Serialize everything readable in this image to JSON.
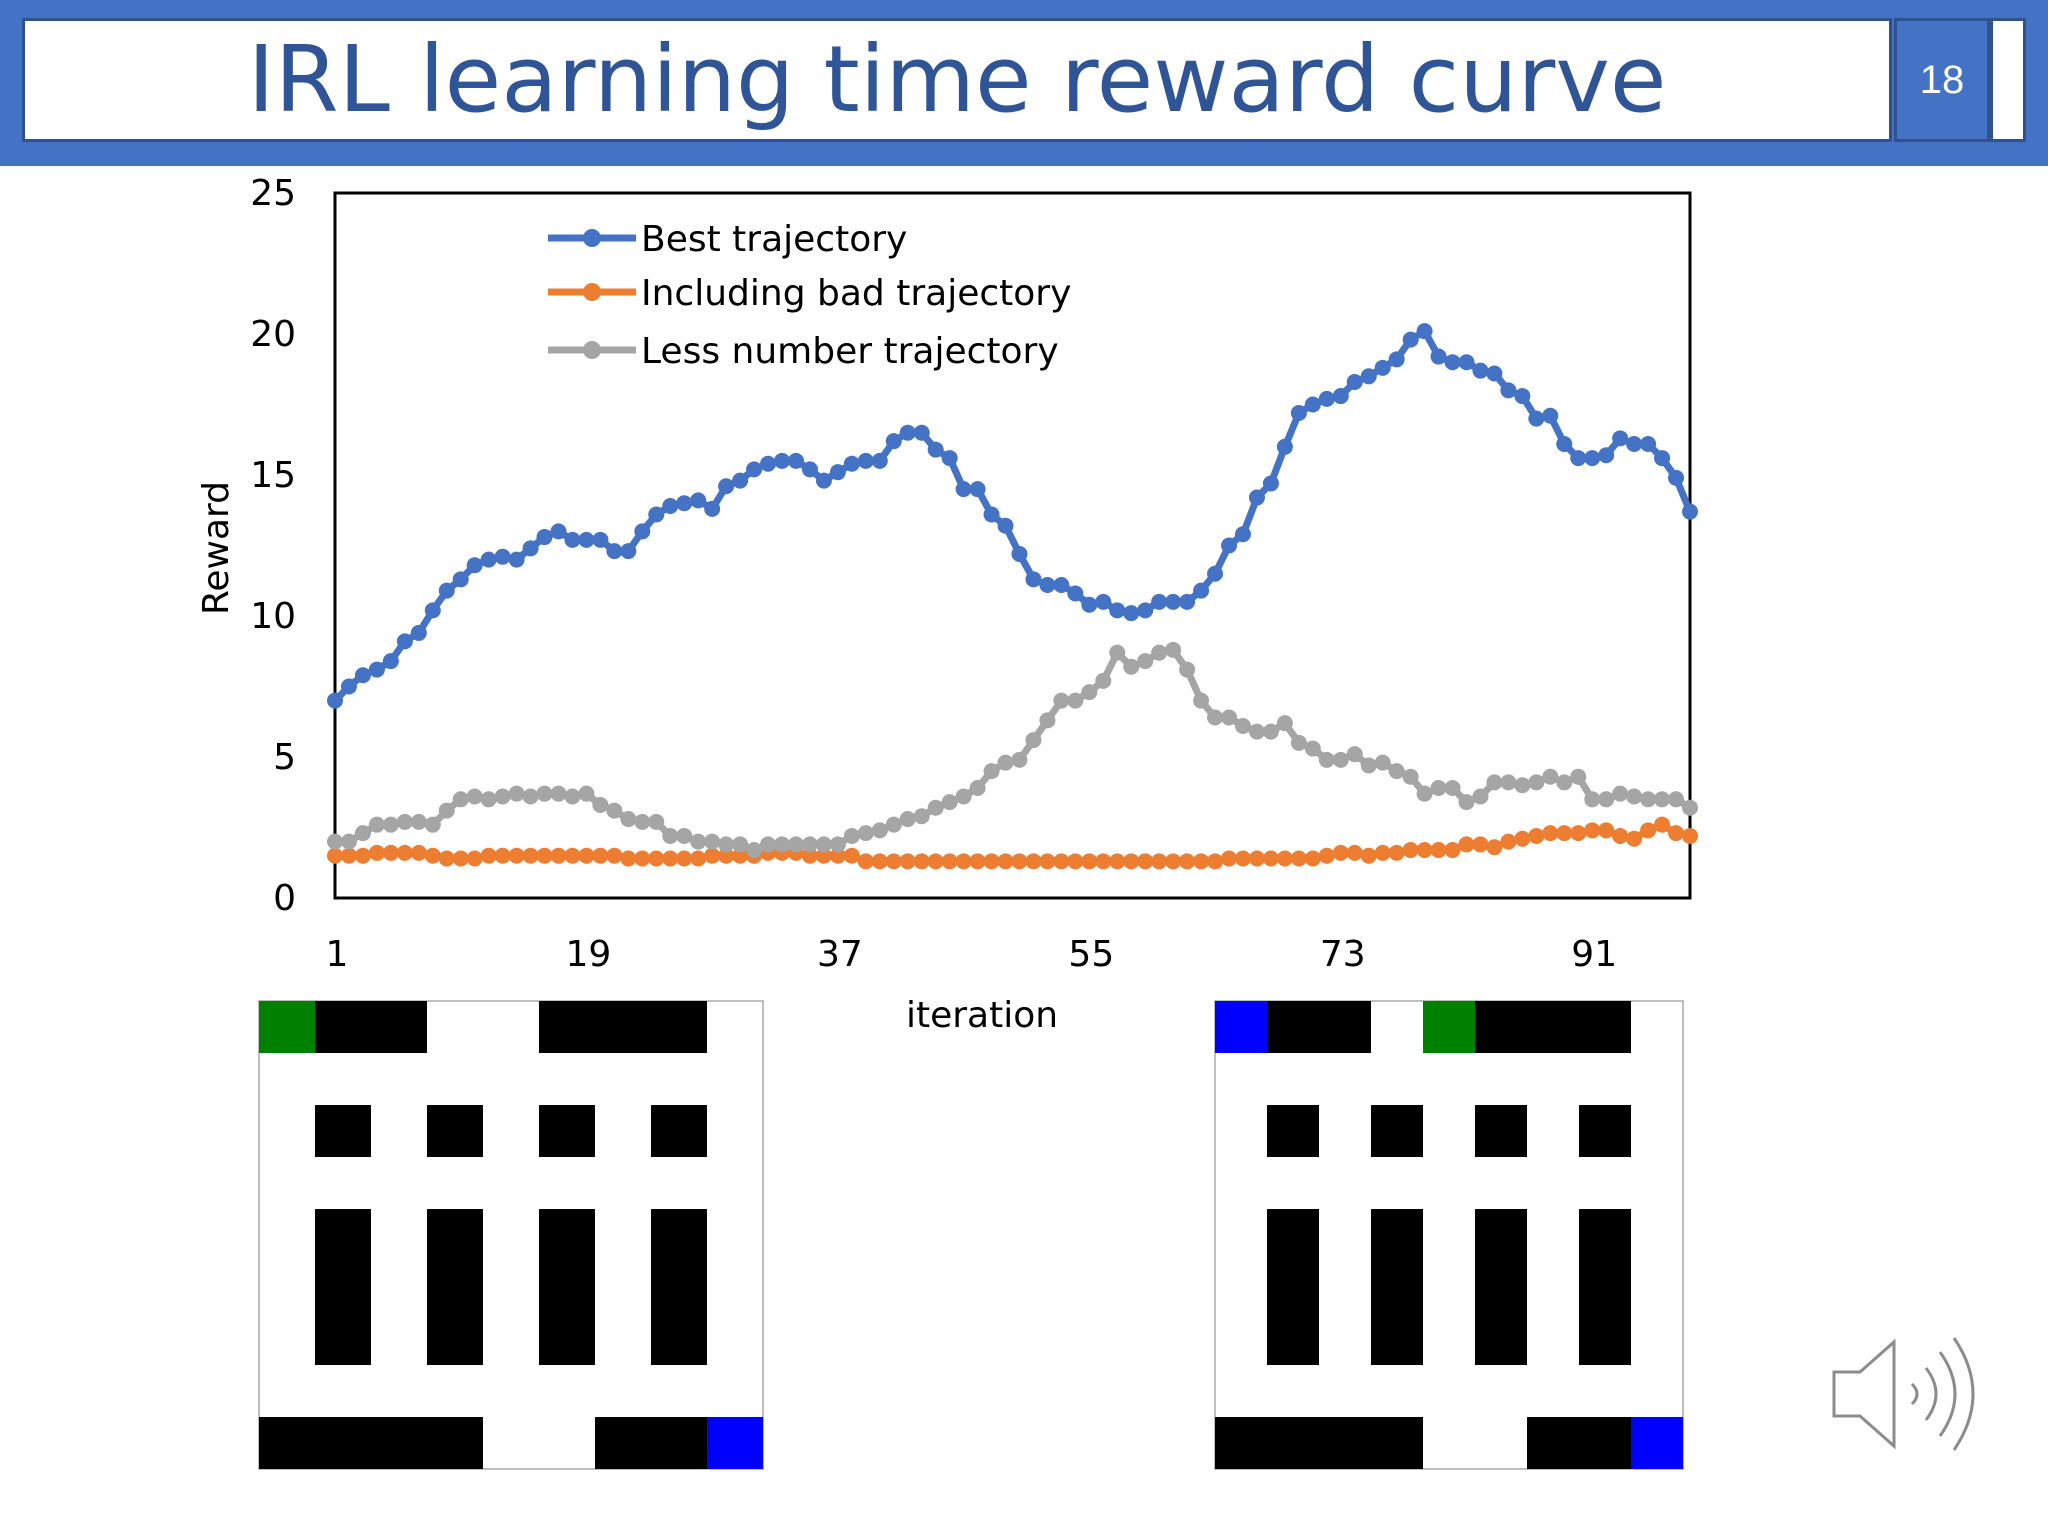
{
  "slide": {
    "title": "IRL learning time reward curve",
    "page_number": "18"
  },
  "colors": {
    "header": "#4472c4",
    "title_text": "#2f5597",
    "best": "#4472c4",
    "bad": "#ed7d31",
    "less": "#a5a5a5",
    "maze_start": "#008000",
    "maze_goal": "#0000ff"
  },
  "chart_data": {
    "type": "line",
    "xlabel": "iteration",
    "ylabel": "Reward",
    "xlim": [
      1,
      98
    ],
    "ylim": [
      0,
      25
    ],
    "x_ticks": [
      1,
      19,
      37,
      55,
      73,
      91
    ],
    "y_ticks": [
      0,
      5,
      10,
      15,
      20,
      25
    ],
    "grid": false,
    "legend_position": "top-left",
    "series": [
      {
        "name": "Best trajectory",
        "color": "#4472c4",
        "values": [
          7.0,
          7.5,
          7.9,
          8.1,
          8.4,
          9.1,
          9.4,
          10.2,
          10.9,
          11.3,
          11.8,
          12.0,
          12.1,
          12.0,
          12.4,
          12.8,
          13.0,
          12.7,
          12.7,
          12.7,
          12.3,
          12.3,
          13.0,
          13.6,
          13.9,
          14.0,
          14.1,
          13.8,
          14.6,
          14.8,
          15.2,
          15.4,
          15.5,
          15.5,
          15.2,
          14.8,
          15.1,
          15.4,
          15.5,
          15.5,
          16.2,
          16.5,
          16.5,
          15.9,
          15.6,
          14.5,
          14.5,
          13.6,
          13.2,
          12.2,
          11.3,
          11.1,
          11.1,
          10.8,
          10.4,
          10.5,
          10.2,
          10.1,
          10.2,
          10.5,
          10.5,
          10.5,
          10.9,
          11.5,
          12.5,
          12.9,
          14.2,
          14.7,
          16.0,
          17.2,
          17.5,
          17.7,
          17.8,
          18.3,
          18.5,
          18.8,
          19.1,
          19.8,
          20.1,
          19.2,
          19.0,
          19.0,
          18.7,
          18.6,
          18.0,
          17.8,
          17.0,
          17.1,
          16.1,
          15.6,
          15.6,
          15.7,
          16.3,
          16.1,
          16.1,
          15.6,
          14.9,
          13.7
        ]
      },
      {
        "name": "Including bad trajectory",
        "color": "#ed7d31",
        "values": [
          1.5,
          1.5,
          1.5,
          1.6,
          1.6,
          1.6,
          1.6,
          1.5,
          1.4,
          1.4,
          1.4,
          1.5,
          1.5,
          1.5,
          1.5,
          1.5,
          1.5,
          1.5,
          1.5,
          1.5,
          1.5,
          1.4,
          1.4,
          1.4,
          1.4,
          1.4,
          1.4,
          1.5,
          1.5,
          1.5,
          1.5,
          1.6,
          1.6,
          1.6,
          1.5,
          1.5,
          1.5,
          1.5,
          1.3,
          1.3,
          1.3,
          1.3,
          1.3,
          1.3,
          1.3,
          1.3,
          1.3,
          1.3,
          1.3,
          1.3,
          1.3,
          1.3,
          1.3,
          1.3,
          1.3,
          1.3,
          1.3,
          1.3,
          1.3,
          1.3,
          1.3,
          1.3,
          1.3,
          1.3,
          1.4,
          1.4,
          1.4,
          1.4,
          1.4,
          1.4,
          1.4,
          1.5,
          1.6,
          1.6,
          1.5,
          1.6,
          1.6,
          1.7,
          1.7,
          1.7,
          1.7,
          1.9,
          1.9,
          1.8,
          2.0,
          2.1,
          2.2,
          2.3,
          2.3,
          2.3,
          2.4,
          2.4,
          2.2,
          2.1,
          2.4,
          2.6,
          2.3,
          2.2
        ]
      },
      {
        "name": "Less number trajectory",
        "color": "#a5a5a5",
        "values": [
          2.0,
          2.0,
          2.3,
          2.6,
          2.6,
          2.7,
          2.7,
          2.6,
          3.1,
          3.5,
          3.6,
          3.5,
          3.6,
          3.7,
          3.6,
          3.7,
          3.7,
          3.6,
          3.7,
          3.3,
          3.1,
          2.8,
          2.7,
          2.7,
          2.2,
          2.2,
          2.0,
          2.0,
          1.9,
          1.9,
          1.7,
          1.9,
          1.9,
          1.9,
          1.9,
          1.9,
          1.9,
          2.2,
          2.3,
          2.4,
          2.6,
          2.8,
          2.9,
          3.2,
          3.4,
          3.6,
          3.9,
          4.5,
          4.8,
          4.9,
          5.6,
          6.3,
          7.0,
          7.0,
          7.3,
          7.7,
          8.7,
          8.2,
          8.4,
          8.7,
          8.8,
          8.1,
          7.0,
          6.4,
          6.4,
          6.1,
          5.9,
          5.9,
          6.2,
          5.5,
          5.3,
          4.9,
          4.9,
          5.1,
          4.7,
          4.8,
          4.5,
          4.3,
          3.7,
          3.9,
          3.9,
          3.4,
          3.6,
          4.1,
          4.1,
          4.0,
          4.1,
          4.3,
          4.1,
          4.3,
          3.5,
          3.5,
          3.7,
          3.6,
          3.5,
          3.5,
          3.5,
          3.2
        ]
      }
    ]
  },
  "mazes": [
    {
      "name": "maze-left",
      "cols": 9,
      "rows": 9,
      "start_cell": [
        0,
        0
      ],
      "goal_cell": [
        8,
        8
      ],
      "walls": [
        [
          1,
          0
        ],
        [
          2,
          0
        ],
        [
          5,
          0
        ],
        [
          6,
          0
        ],
        [
          7,
          0
        ],
        [
          1,
          2
        ],
        [
          3,
          2
        ],
        [
          5,
          2
        ],
        [
          7,
          2
        ],
        [
          1,
          4
        ],
        [
          3,
          4
        ],
        [
          5,
          4
        ],
        [
          7,
          4
        ],
        [
          1,
          5
        ],
        [
          3,
          5
        ],
        [
          5,
          5
        ],
        [
          7,
          5
        ],
        [
          1,
          6
        ],
        [
          3,
          6
        ],
        [
          5,
          6
        ],
        [
          7,
          6
        ],
        [
          0,
          8
        ],
        [
          1,
          8
        ],
        [
          2,
          8
        ],
        [
          3,
          8
        ],
        [
          6,
          8
        ],
        [
          7,
          8
        ]
      ]
    },
    {
      "name": "maze-right",
      "cols": 9,
      "rows": 9,
      "start_cell": [
        4,
        0
      ],
      "goal_cell": [
        8,
        8
      ],
      "extra_blue_cell": [
        0,
        0
      ],
      "walls": [
        [
          1,
          0
        ],
        [
          2,
          0
        ],
        [
          5,
          0
        ],
        [
          6,
          0
        ],
        [
          7,
          0
        ],
        [
          1,
          2
        ],
        [
          3,
          2
        ],
        [
          5,
          2
        ],
        [
          7,
          2
        ],
        [
          1,
          4
        ],
        [
          3,
          4
        ],
        [
          5,
          4
        ],
        [
          7,
          4
        ],
        [
          1,
          5
        ],
        [
          3,
          5
        ],
        [
          5,
          5
        ],
        [
          7,
          5
        ],
        [
          1,
          6
        ],
        [
          3,
          6
        ],
        [
          5,
          6
        ],
        [
          7,
          6
        ],
        [
          0,
          8
        ],
        [
          1,
          8
        ],
        [
          2,
          8
        ],
        [
          3,
          8
        ],
        [
          6,
          8
        ],
        [
          7,
          8
        ]
      ]
    }
  ],
  "icons": {
    "speaker": "speaker-icon"
  }
}
